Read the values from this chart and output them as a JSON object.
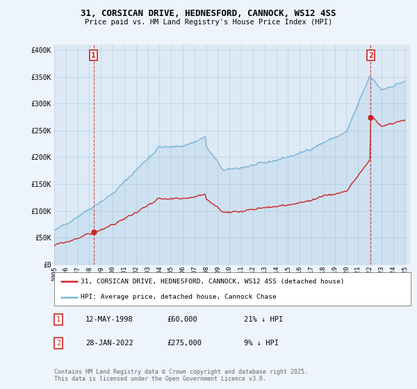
{
  "title_line1": "31, CORSICAN DRIVE, HEDNESFORD, CANNOCK, WS12 4SS",
  "title_line2": "Price paid vs. HM Land Registry's House Price Index (HPI)",
  "ylim": [
    0,
    400000
  ],
  "yticks": [
    0,
    50000,
    100000,
    150000,
    200000,
    250000,
    300000,
    350000,
    400000
  ],
  "ytick_labels": [
    "£0",
    "£50K",
    "£100K",
    "£150K",
    "£200K",
    "£250K",
    "£300K",
    "£350K",
    "£400K"
  ],
  "sale1_t": 1998.36,
  "sale1_price": 60000,
  "sale2_t": 2022.07,
  "sale2_price": 275000,
  "legend_line1": "31, CORSICAN DRIVE, HEDNESFORD, CANNOCK, WS12 4SS (detached house)",
  "legend_line2": "HPI: Average price, detached house, Cannock Chase",
  "ann1_date": "12-MAY-1998",
  "ann1_price": "£60,000",
  "ann1_hpi": "21% ↓ HPI",
  "ann2_date": "28-JAN-2022",
  "ann2_price": "£275,000",
  "ann2_hpi": "9% ↓ HPI",
  "footer": "Contains HM Land Registry data © Crown copyright and database right 2025.\nThis data is licensed under the Open Government Licence v3.0.",
  "hpi_color": "#7ab4d8",
  "sale_color": "#cc2222",
  "bg_color": "#eef4fb",
  "plot_bg": "#ddeaf5",
  "grid_color": "#b8cfe0"
}
